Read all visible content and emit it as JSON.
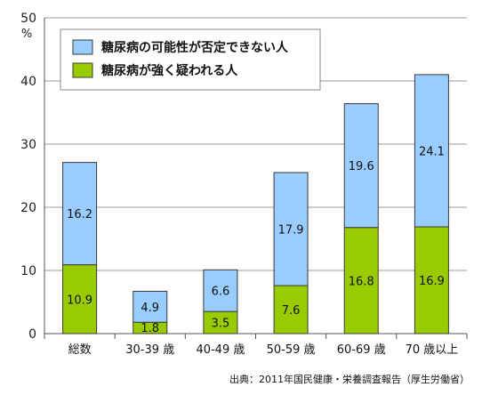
{
  "chart_data": {
    "type": "bar",
    "stacked": true,
    "title": "",
    "xlabel": "",
    "ylabel": "%",
    "ylim": [
      0,
      50
    ],
    "yticks": [
      0,
      10,
      20,
      30,
      40,
      50
    ],
    "grid": true,
    "legend_position": "top-left",
    "categories": [
      "総数",
      "30-39 歳",
      "40-49 歳",
      "50-59 歳",
      "60-69 歳",
      "70 歳以上"
    ],
    "series": [
      {
        "name": "糖尿病が強く疑われる人",
        "color": "#99cc00",
        "values": [
          10.9,
          1.8,
          3.5,
          7.6,
          16.8,
          16.9
        ],
        "labels": [
          "10.9",
          "1.8",
          "3.5",
          "7.6",
          "16.8",
          "16.9"
        ]
      },
      {
        "name": "糖尿病の可能性が否定できない人",
        "color": "#99ccff",
        "values": [
          16.2,
          4.9,
          6.6,
          17.9,
          19.6,
          24.1
        ],
        "labels": [
          "16.2",
          "4.9",
          "6.6",
          "17.9",
          "19.6",
          "24.1"
        ]
      }
    ]
  },
  "source": "出典：2011年国民健康・栄養調査報告（厚生労働省）"
}
